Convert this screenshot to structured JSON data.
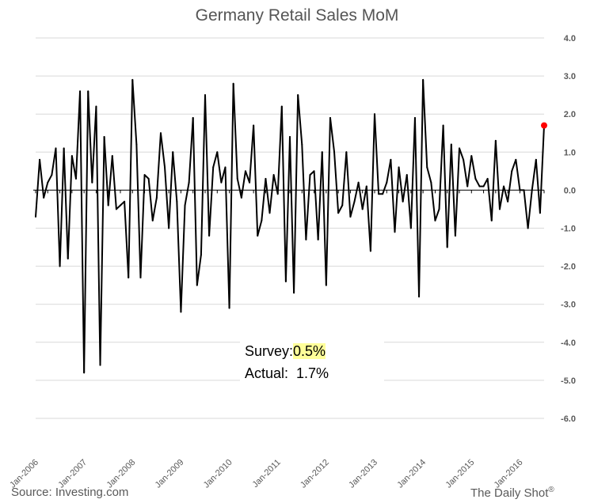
{
  "chart_data": {
    "type": "line",
    "title": "Germany Retail Sales MoM",
    "xlabel": "",
    "ylabel": "",
    "ylim": [
      -6.0,
      4.0
    ],
    "y_ticks": [
      "4.0",
      "3.0",
      "2.0",
      "1.0",
      "0.0",
      "-1.0",
      "-2.0",
      "-3.0",
      "-4.0",
      "-5.0",
      "-6.0"
    ],
    "x_tick_labels": [
      "Jan-2006",
      "Jan-2007",
      "Jan-2008",
      "Jan-2009",
      "Jan-2010",
      "Jan-2011",
      "Jan-2012",
      "Jan-2013",
      "Jan-2014",
      "Jan-2015",
      "Jan-2016"
    ],
    "grid": "horizontal",
    "x_start": "2006-01",
    "series": [
      {
        "color": "#000000",
        "values": [
          -0.7,
          0.8,
          -0.2,
          0.2,
          0.4,
          1.1,
          -2.0,
          1.1,
          -1.8,
          0.9,
          0.3,
          2.6,
          -4.8,
          2.6,
          0.2,
          2.2,
          -4.6,
          1.4,
          -0.4,
          0.9,
          -0.5,
          -0.4,
          -0.3,
          -2.3,
          2.9,
          1.2,
          -2.3,
          0.4,
          0.3,
          -0.8,
          -0.2,
          1.5,
          0.6,
          -1.0,
          1.0,
          -0.3,
          -3.2,
          -0.4,
          0.2,
          1.9,
          -2.5,
          -1.7,
          2.5,
          -1.2,
          0.6,
          1.0,
          0.2,
          0.6,
          -3.1,
          2.8,
          0.3,
          -0.2,
          0.5,
          0.2,
          1.7,
          -1.2,
          -0.8,
          0.3,
          -0.6,
          0.4,
          -0.1,
          2.2,
          -2.4,
          1.4,
          -2.7,
          2.5,
          1.2,
          -1.3,
          0.4,
          0.5,
          -1.3,
          1.0,
          -2.5,
          1.9,
          1.0,
          -0.6,
          -0.4,
          1.0,
          -0.7,
          -0.3,
          0.2,
          -0.5,
          0.1,
          -1.6,
          2.0,
          -0.1,
          -0.1,
          0.2,
          0.8,
          -1.1,
          0.6,
          -0.3,
          0.4,
          -1.0,
          1.9,
          -2.8,
          2.9,
          0.6,
          0.2,
          -0.8,
          -0.5,
          1.7,
          -1.5,
          1.2,
          -1.2,
          1.1,
          0.8,
          0.1,
          0.9,
          0.3,
          0.1,
          0.1,
          0.3,
          -0.8,
          1.3,
          -0.5,
          0.1,
          -0.3,
          0.5,
          0.8,
          0.0,
          0.0,
          -1.0,
          0.0,
          0.8,
          -0.6,
          1.7
        ]
      }
    ],
    "highlight_point_color": "#ff0000"
  },
  "annotation": {
    "survey_label": "Survey:",
    "survey_value": "0.5%",
    "actual_label": "Actual:",
    "actual_value": "1.7%"
  },
  "footer": {
    "source": "Source: Investing.com",
    "brand": "The Daily Shot",
    "brand_mark": "®"
  }
}
